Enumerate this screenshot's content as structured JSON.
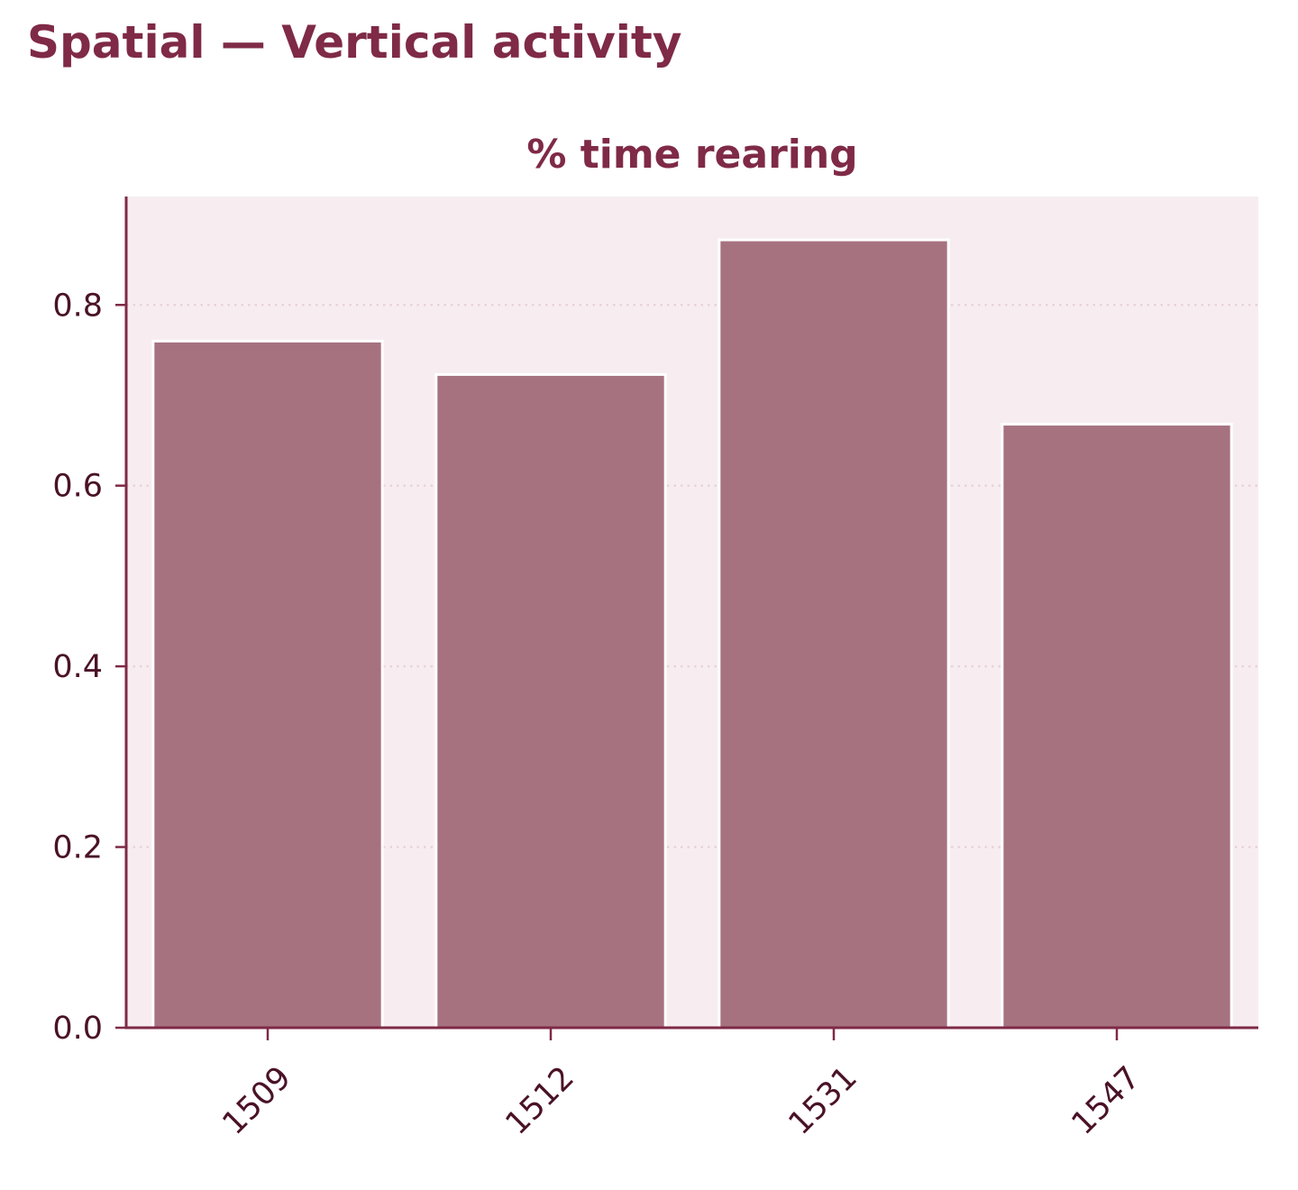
{
  "figure": {
    "title": "Spatial — Vertical activity"
  },
  "colors": {
    "title": "#7f2a47",
    "bar_fill": "#a67280",
    "bar_edge": "#ffffff",
    "plot_background": "#f7edf1",
    "axis": "#7f2a47",
    "tick_text": "#4a1227",
    "grid": "#e8d3da"
  },
  "chart_data": {
    "type": "bar",
    "title": "% time rearing",
    "xlabel": "",
    "ylabel": "",
    "categories": [
      "1509",
      "1512",
      "1531",
      "1547"
    ],
    "values": [
      0.76,
      0.723,
      0.872,
      0.668
    ],
    "ylim": [
      0,
      0.92
    ],
    "yticks": [
      0.0,
      0.2,
      0.4,
      0.6,
      0.8
    ],
    "ytick_labels": [
      "0.0",
      "0.2",
      "0.4",
      "0.6",
      "0.8"
    ],
    "grid": "y dotted",
    "legend": "none"
  }
}
